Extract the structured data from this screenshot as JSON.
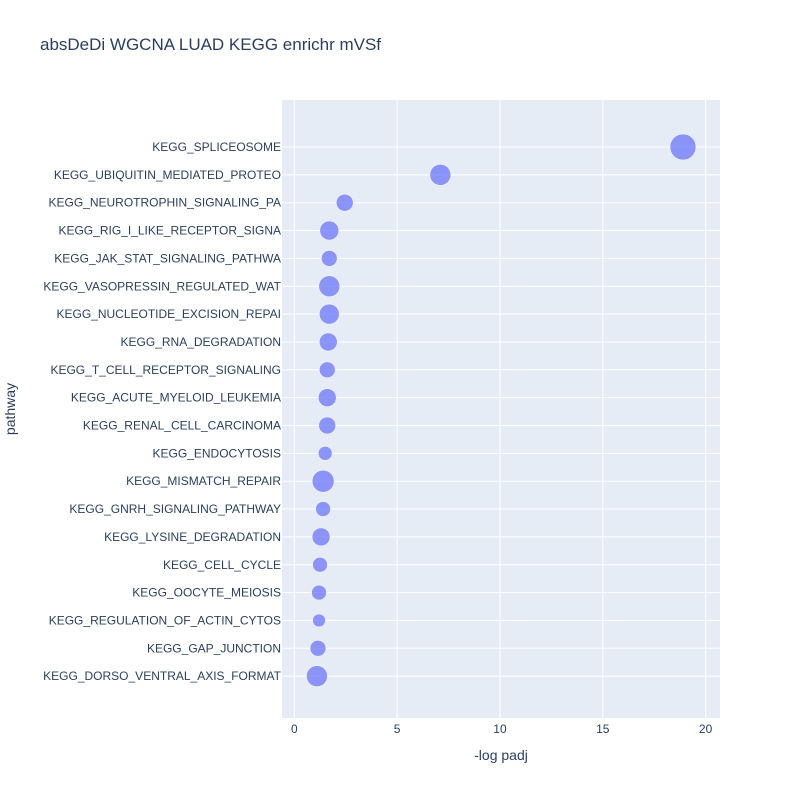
{
  "chart_data": {
    "type": "scatter",
    "title": "absDeDi WGCNA LUAD KEGG enrichr mVSf",
    "xlabel": "-log padj",
    "ylabel": "pathway",
    "xlim": [
      -0.6,
      20.7
    ],
    "xticks": [
      0,
      5,
      10,
      15,
      20
    ],
    "grid": true,
    "legend": "none",
    "marker_color": "#636efa",
    "plot_background": "#e5ecf6",
    "points": [
      {
        "pathway": "KEGG_SPLICEOSOME",
        "x": 18.9,
        "size": 26
      },
      {
        "pathway": "KEGG_UBIQUITIN_MEDIATED_PROTEO",
        "x": 7.1,
        "size": 21
      },
      {
        "pathway": "KEGG_NEUROTROPHIN_SIGNALING_PA",
        "x": 2.45,
        "size": 17
      },
      {
        "pathway": "KEGG_RIG_I_LIKE_RECEPTOR_SIGNA",
        "x": 1.7,
        "size": 19
      },
      {
        "pathway": "KEGG_JAK_STAT_SIGNALING_PATHWA",
        "x": 1.7,
        "size": 16
      },
      {
        "pathway": "KEGG_VASOPRESSIN_REGULATED_WAT",
        "x": 1.7,
        "size": 21
      },
      {
        "pathway": "KEGG_NUCLEOTIDE_EXCISION_REPAI",
        "x": 1.7,
        "size": 20
      },
      {
        "pathway": "KEGG_RNA_DEGRADATION",
        "x": 1.65,
        "size": 18
      },
      {
        "pathway": "KEGG_T_CELL_RECEPTOR_SIGNALING",
        "x": 1.6,
        "size": 16
      },
      {
        "pathway": "KEGG_ACUTE_MYELOID_LEUKEMIA",
        "x": 1.6,
        "size": 18
      },
      {
        "pathway": "KEGG_RENAL_CELL_CARCINOMA",
        "x": 1.6,
        "size": 17
      },
      {
        "pathway": "KEGG_ENDOCYTOSIS",
        "x": 1.5,
        "size": 14
      },
      {
        "pathway": "KEGG_MISMATCH_REPAIR",
        "x": 1.4,
        "size": 22
      },
      {
        "pathway": "KEGG_GNRH_SIGNALING_PATHWAY",
        "x": 1.4,
        "size": 15
      },
      {
        "pathway": "KEGG_LYSINE_DEGRADATION",
        "x": 1.3,
        "size": 18
      },
      {
        "pathway": "KEGG_CELL_CYCLE",
        "x": 1.25,
        "size": 15
      },
      {
        "pathway": "KEGG_OOCYTE_MEIOSIS",
        "x": 1.2,
        "size": 15
      },
      {
        "pathway": "KEGG_REGULATION_OF_ACTIN_CYTOS",
        "x": 1.2,
        "size": 13
      },
      {
        "pathway": "KEGG_GAP_JUNCTION",
        "x": 1.15,
        "size": 16
      },
      {
        "pathway": "KEGG_DORSO_VENTRAL_AXIS_FORMAT",
        "x": 1.1,
        "size": 21
      }
    ]
  }
}
